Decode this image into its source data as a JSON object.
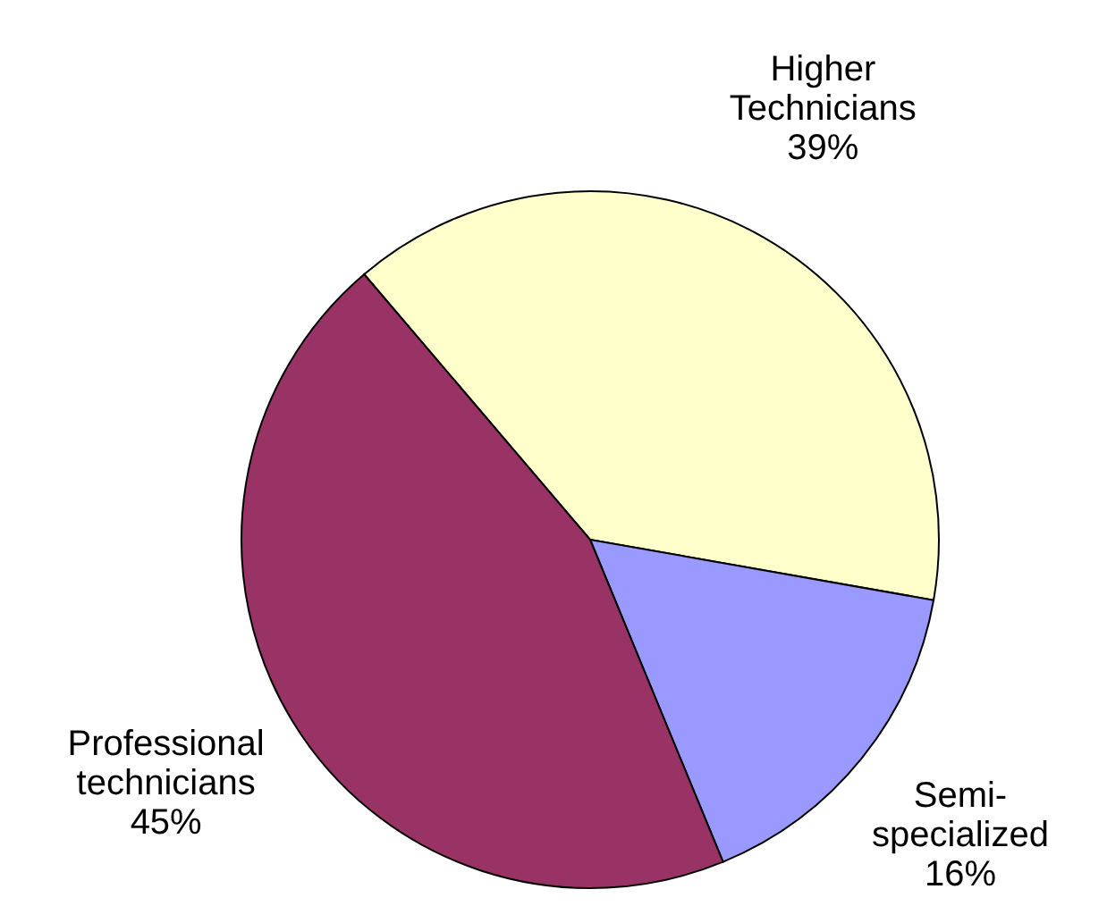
{
  "chart_data": {
    "type": "pie",
    "categories": [
      "Higher Technicians",
      "Semi-specialized",
      "Professional technicians"
    ],
    "values": [
      39,
      16,
      45
    ],
    "colors": [
      "#ffffcc",
      "#9999ff",
      "#993366"
    ],
    "value_labels": [
      "39%",
      "16%",
      "45%"
    ],
    "legend": false
  }
}
